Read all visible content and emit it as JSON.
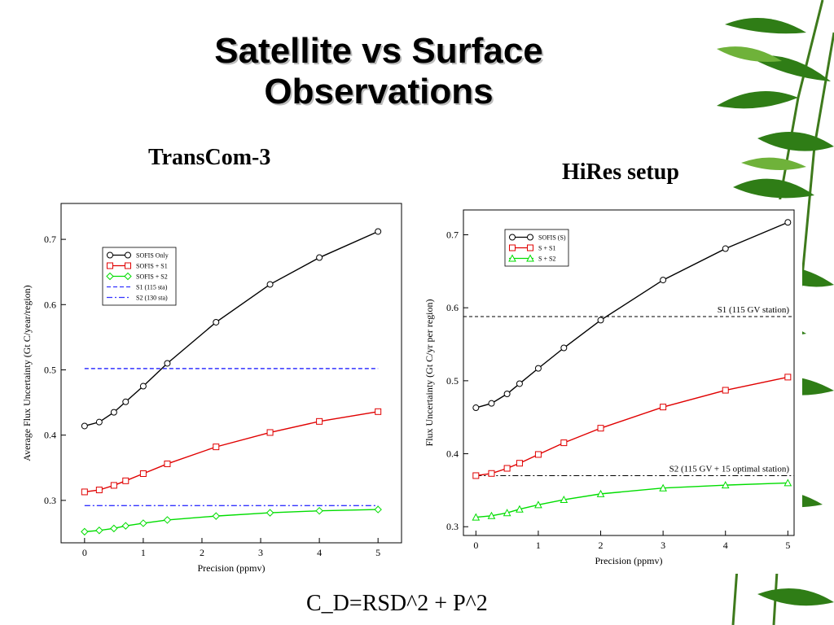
{
  "slide": {
    "title_line1": "Satellite vs Surface",
    "title_line2": "Observations",
    "subtitle_left": "TransCom-3",
    "subtitle_right": "HiRes setup",
    "formula": "C_D=RSD^2 + P^2"
  },
  "chart_data": [
    {
      "type": "line",
      "title": "",
      "xlabel": "Precision (ppmv)",
      "ylabel": "Average Flux Uncertainty (Gt C/year/region)",
      "xlim": [
        -0.4,
        5.4
      ],
      "ylim": [
        0.235,
        0.755
      ],
      "xticks": [
        0,
        1,
        2,
        3,
        4,
        5
      ],
      "yticks": [
        0.3,
        0.4,
        0.5,
        0.6,
        0.7
      ],
      "grid": false,
      "legend_position": "top-left",
      "series": [
        {
          "name": "SOFIS Only",
          "color": "#000000",
          "marker": "circle",
          "dash": "",
          "x": [
            0,
            0.25,
            0.5,
            0.7,
            1,
            1.41,
            2.24,
            3.16,
            4,
            5
          ],
          "values": [
            0.414,
            0.42,
            0.435,
            0.451,
            0.475,
            0.51,
            0.573,
            0.631,
            0.672,
            0.712
          ]
        },
        {
          "name": "SOFIS + S1",
          "color": "#e00000",
          "marker": "square",
          "dash": "",
          "x": [
            0,
            0.25,
            0.5,
            0.7,
            1,
            1.41,
            2.24,
            3.16,
            4,
            5
          ],
          "values": [
            0.313,
            0.316,
            0.323,
            0.33,
            0.341,
            0.356,
            0.382,
            0.404,
            0.421,
            0.436
          ]
        },
        {
          "name": "SOFIS + S2",
          "color": "#00dd00",
          "marker": "diamond",
          "dash": "",
          "x": [
            0,
            0.25,
            0.5,
            0.7,
            1,
            1.41,
            2.24,
            3.16,
            4,
            5
          ],
          "values": [
            0.252,
            0.254,
            0.257,
            0.261,
            0.265,
            0.27,
            0.276,
            0.281,
            0.284,
            0.286
          ]
        },
        {
          "name": "S1 (115 sta)",
          "color": "#3333ff",
          "marker": "none",
          "dash": "5,3",
          "x": [
            0,
            5
          ],
          "values": [
            0.502,
            0.502
          ]
        },
        {
          "name": "S2 (130 sta)",
          "color": "#3333ff",
          "marker": "none",
          "dash": "7,3,2,3",
          "x": [
            0,
            5
          ],
          "values": [
            0.292,
            0.292
          ]
        }
      ]
    },
    {
      "type": "line",
      "title": "",
      "xlabel": "Precision (ppmv)",
      "ylabel": "Flux Uncertainty (Gt C/yr per region)",
      "xlim": [
        -0.2,
        5.1
      ],
      "ylim": [
        0.288,
        0.734
      ],
      "xticks": [
        0,
        1,
        2,
        3,
        4,
        5
      ],
      "yticks": [
        0.3,
        0.4,
        0.5,
        0.6,
        0.7
      ],
      "grid": false,
      "legend_position": "top-left",
      "series": [
        {
          "name": "SOFIS (S)",
          "color": "#000000",
          "marker": "circle",
          "dash": "",
          "x": [
            0,
            0.25,
            0.5,
            0.7,
            1,
            1.41,
            2,
            3,
            4,
            5
          ],
          "values": [
            0.463,
            0.469,
            0.482,
            0.496,
            0.517,
            0.545,
            0.583,
            0.638,
            0.681,
            0.717
          ]
        },
        {
          "name": "S + S1",
          "color": "#e00000",
          "marker": "square",
          "dash": "",
          "x": [
            0,
            0.25,
            0.5,
            0.7,
            1,
            1.41,
            2,
            3,
            4,
            5
          ],
          "values": [
            0.37,
            0.373,
            0.38,
            0.387,
            0.399,
            0.415,
            0.435,
            0.464,
            0.487,
            0.505
          ]
        },
        {
          "name": "S + S2",
          "color": "#00dd00",
          "marker": "triangle",
          "dash": "",
          "x": [
            0,
            0.25,
            0.5,
            0.7,
            1,
            1.41,
            2,
            3,
            4,
            5
          ],
          "values": [
            0.313,
            0.315,
            0.319,
            0.324,
            0.33,
            0.337,
            0.345,
            0.353,
            0.357,
            0.36
          ]
        }
      ],
      "reference_lines": [
        {
          "label": "S1 (115 GV station)",
          "value": 0.588,
          "x": [
            -0.2,
            5.1
          ],
          "color": "#000000",
          "dash": "4,3"
        },
        {
          "label": "S2 (115 GV + 15 optimal station)",
          "value": 0.37,
          "x": [
            0,
            5.1
          ],
          "color": "#000000",
          "dash": "7,3,2,3"
        }
      ]
    }
  ]
}
